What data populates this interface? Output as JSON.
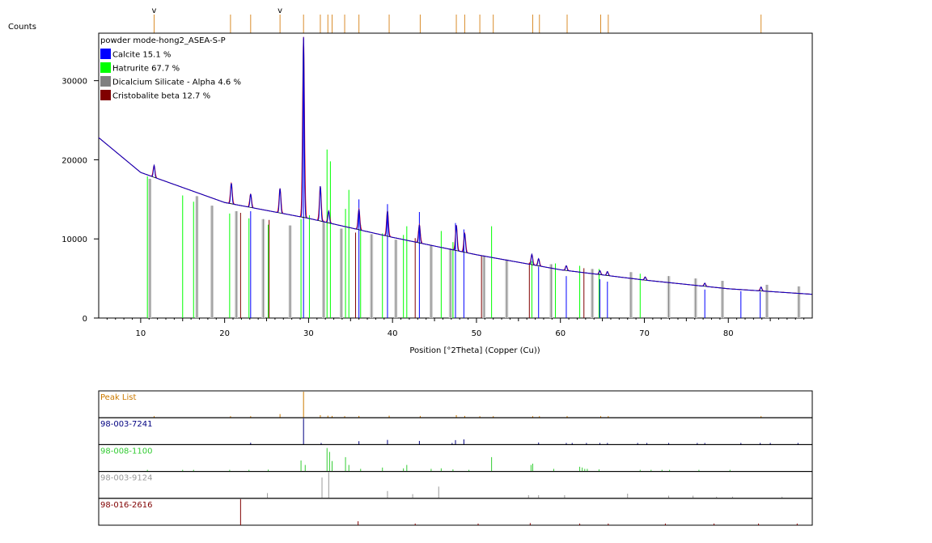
{
  "chart_data": {
    "type": "line",
    "title": "powder mode-hong2_ASEA-S-P",
    "ylabel": "Counts",
    "xlabel": "Position [°2Theta] (Copper (Cu))",
    "xlim": [
      5,
      90
    ],
    "ylim": [
      0,
      36000
    ],
    "x_ticks": [
      "10",
      "20",
      "30",
      "40",
      "50",
      "60",
      "70",
      "80"
    ],
    "y_ticks": [
      "0",
      "10000",
      "20000",
      "30000"
    ],
    "grid": false,
    "legend_position": "top-left",
    "legend": [
      {
        "label": "Calcite 15.1 %",
        "color": "#0000ff"
      },
      {
        "label": "Hatrurite 67.7 %",
        "color": "#00ff00"
      },
      {
        "label": "Dicalcium Silicate - Alpha 4.6 %",
        "color": "#808080"
      },
      {
        "label": "Cristobalite beta 12.7 %",
        "color": "#800000"
      }
    ],
    "peak_markers_top": [
      11.6,
      20.7,
      23.1,
      26.6,
      29.4,
      31.4,
      32.3,
      32.8,
      34.3,
      36.0,
      39.6,
      43.3,
      47.6,
      48.6,
      50.4,
      52.0,
      56.7,
      57.5,
      60.8,
      64.8,
      65.7,
      83.9
    ],
    "peak_marker_v_labels": [
      {
        "x": 11.6,
        "text": "v"
      },
      {
        "x": 26.6,
        "text": "v"
      }
    ],
    "series": [
      {
        "name": "Calcite 15.1 %",
        "color": "#0000ff",
        "sticks": [
          [
            23.1,
            13500
          ],
          [
            29.4,
            35300
          ],
          [
            36.0,
            15000
          ],
          [
            39.4,
            14400
          ],
          [
            43.2,
            13400
          ],
          [
            47.5,
            12000
          ],
          [
            48.5,
            11200
          ],
          [
            57.4,
            6500
          ],
          [
            60.7,
            5300
          ],
          [
            64.7,
            4900
          ],
          [
            65.6,
            4600
          ],
          [
            77.2,
            3600
          ],
          [
            81.5,
            3400
          ],
          [
            83.8,
            3300
          ]
        ]
      },
      {
        "name": "Hatrurite 67.7 %",
        "color": "#00ff00",
        "sticks": [
          [
            10.8,
            17900
          ],
          [
            15.0,
            15500
          ],
          [
            16.3,
            14700
          ],
          [
            20.6,
            13200
          ],
          [
            22.9,
            12600
          ],
          [
            25.2,
            11800
          ],
          [
            29.1,
            12500
          ],
          [
            30.1,
            13000
          ],
          [
            32.2,
            21300
          ],
          [
            32.6,
            19800
          ],
          [
            34.4,
            13800
          ],
          [
            34.8,
            16200
          ],
          [
            36.2,
            11800
          ],
          [
            38.8,
            10700
          ],
          [
            41.3,
            10500
          ],
          [
            41.7,
            11600
          ],
          [
            45.8,
            11000
          ],
          [
            47.2,
            9600
          ],
          [
            51.8,
            11600
          ],
          [
            56.6,
            7200
          ],
          [
            59.4,
            6900
          ],
          [
            62.3,
            6600
          ],
          [
            64.6,
            6200
          ],
          [
            69.5,
            5600
          ],
          [
            73.0,
            5000
          ]
        ]
      },
      {
        "name": "Dicalcium Silicate - Alpha 4.6 %",
        "color": "#808080",
        "sticks": [
          [
            11.1,
            17600
          ],
          [
            16.7,
            15400
          ],
          [
            18.5,
            14200
          ],
          [
            21.4,
            13500
          ],
          [
            24.6,
            12500
          ],
          [
            27.8,
            11700
          ],
          [
            31.8,
            12300
          ],
          [
            33.9,
            11300
          ],
          [
            37.5,
            10600
          ],
          [
            40.4,
            9900
          ],
          [
            44.6,
            9200
          ],
          [
            46.9,
            8800
          ],
          [
            50.9,
            7900
          ],
          [
            53.6,
            7400
          ],
          [
            58.9,
            6800
          ],
          [
            63.8,
            6200
          ],
          [
            68.4,
            5800
          ],
          [
            72.9,
            5300
          ],
          [
            76.1,
            5000
          ],
          [
            79.3,
            4700
          ],
          [
            84.6,
            4200
          ],
          [
            88.4,
            4000
          ]
        ]
      },
      {
        "name": "Cristobalite beta 12.7 %",
        "color": "#800000",
        "sticks": [
          [
            21.9,
            13300
          ],
          [
            25.3,
            12400
          ],
          [
            35.6,
            10800
          ],
          [
            42.7,
            10100
          ],
          [
            50.6,
            7900
          ],
          [
            56.3,
            7000
          ],
          [
            62.8,
            6300
          ]
        ]
      }
    ],
    "observed_peaks": [
      [
        11.6,
        1500
      ],
      [
        20.8,
        2600
      ],
      [
        23.1,
        1700
      ],
      [
        26.6,
        3100
      ],
      [
        29.4,
        22800
      ],
      [
        31.4,
        4400
      ],
      [
        32.4,
        1500
      ],
      [
        36.0,
        2600
      ],
      [
        39.4,
        3200
      ],
      [
        43.2,
        2300
      ],
      [
        47.6,
        3200
      ],
      [
        48.6,
        2400
      ],
      [
        56.6,
        1300
      ],
      [
        57.4,
        900
      ],
      [
        60.7,
        600
      ],
      [
        64.7,
        500
      ],
      [
        65.6,
        500
      ],
      [
        70.1,
        400
      ],
      [
        77.2,
        400
      ],
      [
        83.9,
        500
      ]
    ],
    "background": [
      [
        5,
        22800
      ],
      [
        10,
        18400
      ],
      [
        20,
        14600
      ],
      [
        30,
        12600
      ],
      [
        40,
        10200
      ],
      [
        50,
        8000
      ],
      [
        60,
        6100
      ],
      [
        70,
        4800
      ],
      [
        80,
        3700
      ],
      [
        90,
        3000
      ]
    ],
    "lower_panels": [
      {
        "label": "Peak List",
        "color": "#cc7a00",
        "sticks": [
          [
            11.6,
            0.05
          ],
          [
            20.7,
            0.06
          ],
          [
            23.1,
            0.05
          ],
          [
            26.6,
            0.14
          ],
          [
            29.4,
            1.0
          ],
          [
            31.4,
            0.1
          ],
          [
            32.3,
            0.08
          ],
          [
            32.8,
            0.07
          ],
          [
            34.3,
            0.06
          ],
          [
            36.0,
            0.07
          ],
          [
            39.6,
            0.08
          ],
          [
            43.3,
            0.07
          ],
          [
            47.6,
            0.1
          ],
          [
            48.6,
            0.07
          ],
          [
            50.4,
            0.05
          ],
          [
            52.0,
            0.05
          ],
          [
            56.7,
            0.06
          ],
          [
            57.5,
            0.05
          ],
          [
            60.8,
            0.04
          ],
          [
            64.8,
            0.04
          ],
          [
            65.7,
            0.04
          ],
          [
            83.9,
            0.04
          ]
        ]
      },
      {
        "label": "98-003-7241",
        "color": "#000080",
        "sticks": [
          [
            23.1,
            0.07
          ],
          [
            29.4,
            1.0
          ],
          [
            31.5,
            0.03
          ],
          [
            36.0,
            0.13
          ],
          [
            39.4,
            0.18
          ],
          [
            43.2,
            0.14
          ],
          [
            47.1,
            0.06
          ],
          [
            47.5,
            0.17
          ],
          [
            48.5,
            0.2
          ],
          [
            57.4,
            0.08
          ],
          [
            60.7,
            0.05
          ],
          [
            61.4,
            0.03
          ],
          [
            63.1,
            0.03
          ],
          [
            64.7,
            0.05
          ],
          [
            65.6,
            0.05
          ],
          [
            69.2,
            0.03
          ],
          [
            70.3,
            0.03
          ],
          [
            72.9,
            0.03
          ],
          [
            76.3,
            0.03
          ],
          [
            77.2,
            0.04
          ],
          [
            81.5,
            0.03
          ],
          [
            83.8,
            0.04
          ],
          [
            85.0,
            0.03
          ],
          [
            88.3,
            0.03
          ]
        ]
      },
      {
        "label": "98-008-1100",
        "color": "#33cc33",
        "sticks": [
          [
            10.8,
            0.05
          ],
          [
            15.0,
            0.05
          ],
          [
            16.3,
            0.04
          ],
          [
            20.6,
            0.05
          ],
          [
            22.9,
            0.05
          ],
          [
            25.2,
            0.07
          ],
          [
            29.1,
            0.42
          ],
          [
            29.6,
            0.25
          ],
          [
            32.2,
            0.9
          ],
          [
            32.5,
            0.75
          ],
          [
            32.8,
            0.4
          ],
          [
            34.4,
            0.55
          ],
          [
            34.8,
            0.25
          ],
          [
            36.2,
            0.1
          ],
          [
            38.8,
            0.15
          ],
          [
            41.3,
            0.12
          ],
          [
            41.7,
            0.25
          ],
          [
            44.6,
            0.1
          ],
          [
            45.8,
            0.12
          ],
          [
            47.2,
            0.08
          ],
          [
            49.1,
            0.05
          ],
          [
            51.8,
            0.55
          ],
          [
            56.5,
            0.25
          ],
          [
            56.7,
            0.3
          ],
          [
            59.2,
            0.1
          ],
          [
            62.3,
            0.18
          ],
          [
            62.6,
            0.15
          ],
          [
            62.9,
            0.1
          ],
          [
            63.2,
            0.1
          ],
          [
            64.6,
            0.08
          ],
          [
            69.5,
            0.05
          ],
          [
            70.8,
            0.05
          ],
          [
            72.1,
            0.04
          ],
          [
            73.0,
            0.04
          ],
          [
            76.5,
            0.04
          ],
          [
            80.2,
            0.03
          ]
        ]
      },
      {
        "label": "98-003-9124",
        "color": "#999999",
        "sticks": [
          [
            25.1,
            0.2
          ],
          [
            31.6,
            0.8
          ],
          [
            32.4,
            1.0
          ],
          [
            39.4,
            0.28
          ],
          [
            42.4,
            0.16
          ],
          [
            45.5,
            0.45
          ],
          [
            56.2,
            0.12
          ],
          [
            57.4,
            0.12
          ],
          [
            60.5,
            0.12
          ],
          [
            68.0,
            0.18
          ],
          [
            72.9,
            0.1
          ],
          [
            75.8,
            0.1
          ],
          [
            78.6,
            0.06
          ],
          [
            80.5,
            0.06
          ],
          [
            86.4,
            0.04
          ]
        ]
      },
      {
        "label": "98-016-2616",
        "color": "#800000",
        "sticks": [
          [
            21.9,
            1.0
          ],
          [
            35.9,
            0.15
          ],
          [
            42.7,
            0.06
          ],
          [
            50.2,
            0.04
          ],
          [
            56.4,
            0.08
          ],
          [
            62.3,
            0.04
          ],
          [
            65.7,
            0.03
          ],
          [
            72.5,
            0.04
          ],
          [
            78.3,
            0.03
          ],
          [
            83.6,
            0.03
          ],
          [
            88.2,
            0.03
          ]
        ]
      }
    ]
  }
}
